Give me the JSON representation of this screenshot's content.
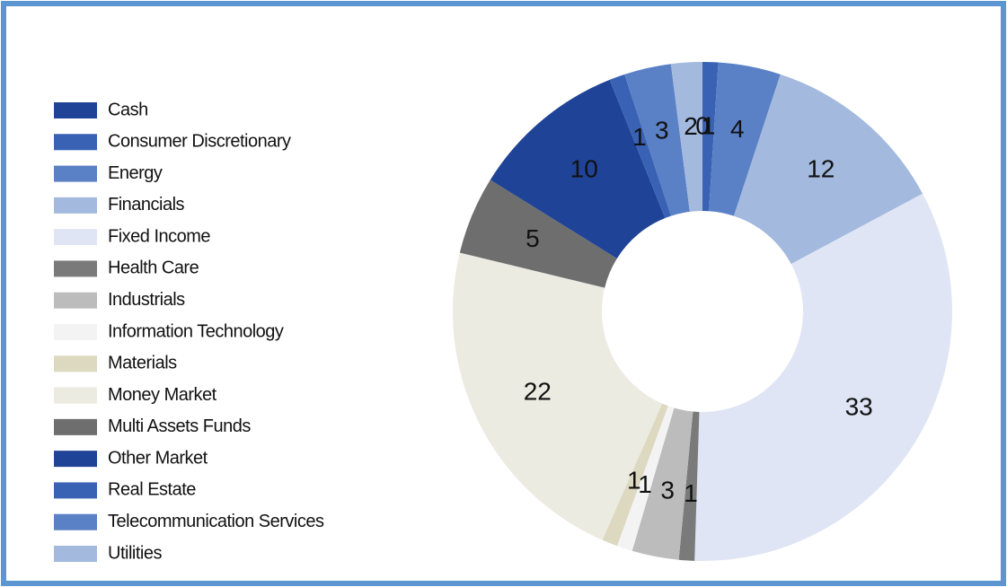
{
  "chart_data": {
    "type": "donut",
    "categories": [
      "Cash",
      "Consumer Discretionary",
      "Energy",
      "Financials",
      "Fixed Income",
      "Health Care",
      "Industrials",
      "Information Technology",
      "Materials",
      "Money Market",
      "Multi Assets Funds",
      "Other Market",
      "Real Estate",
      "Telecommunication Services",
      "Utilities"
    ],
    "values": [
      0,
      1,
      4,
      12,
      33,
      1,
      3,
      1,
      1,
      22,
      5,
      10,
      1,
      3,
      2
    ],
    "colors": [
      "#1f4396",
      "#3a62b4",
      "#5a80c6",
      "#a3b9de",
      "#dfe5f4",
      "#7a7a7a",
      "#bcbcbc",
      "#f3f3f3",
      "#ddd8c0",
      "#ebebe1",
      "#6e6e6e",
      "#1f4396",
      "#3a62b4",
      "#5a80c6",
      "#a3b9de"
    ],
    "legend": "left"
  }
}
